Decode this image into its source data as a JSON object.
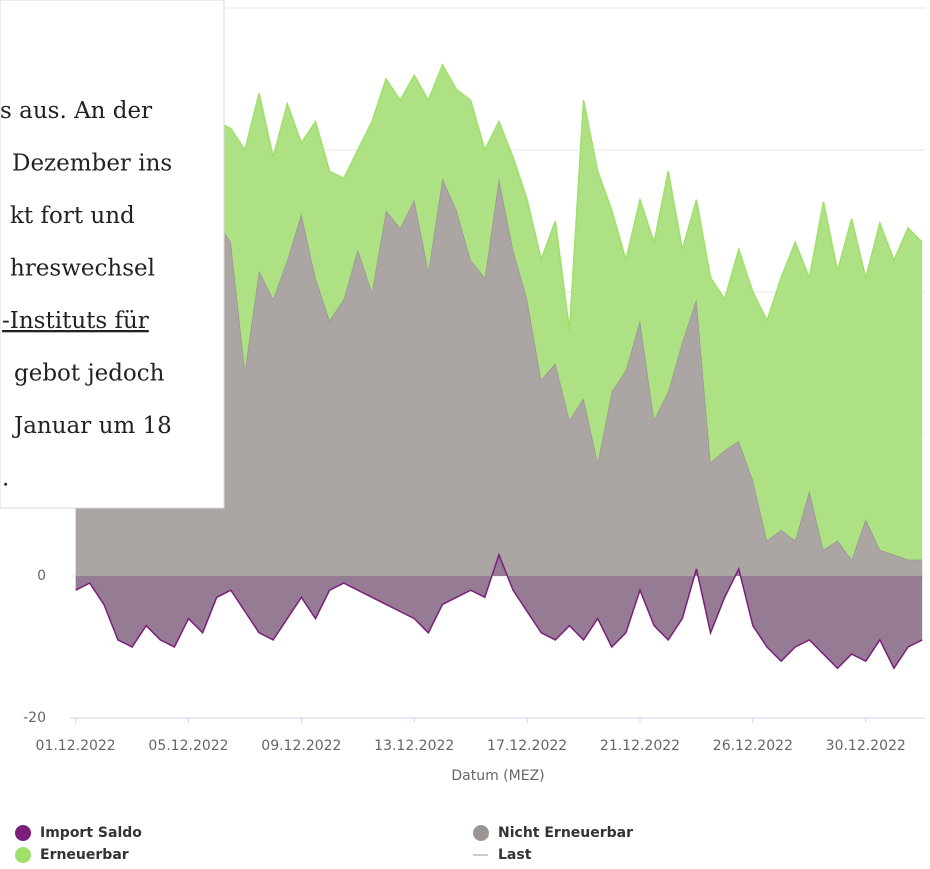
{
  "chart_data": {
    "type": "stacked-area",
    "x_label": "Datum (MEZ)",
    "x": [
      0,
      0.5,
      1,
      1.5,
      2,
      2.5,
      3,
      3.5,
      4,
      4.5,
      5,
      5.5,
      6,
      6.5,
      7,
      7.5,
      8,
      8.5,
      9,
      9.5,
      10,
      10.5,
      11,
      11.5,
      12,
      12.5,
      13,
      13.5,
      14,
      14.5,
      15,
      15.5,
      16,
      16.5,
      17,
      17.5,
      18,
      18.5,
      19,
      19.5,
      20,
      20.5,
      21,
      21.5,
      22,
      22.5,
      23,
      23.5,
      24,
      24.5,
      25,
      25.5,
      26,
      26.5,
      27,
      27.5,
      28,
      28.5,
      29,
      29.5,
      30
    ],
    "xlim": [
      -0.2,
      30.1
    ],
    "xticks": [
      {
        "value": 0,
        "label": "01.12.2022"
      },
      {
        "value": 4,
        "label": "05.12.2022"
      },
      {
        "value": 8,
        "label": "09.12.2022"
      },
      {
        "value": 12,
        "label": "13.12.2022"
      },
      {
        "value": 16,
        "label": "17.12.2022"
      },
      {
        "value": 20,
        "label": "21.12.2022"
      },
      {
        "value": 24,
        "label": "26.12.2022"
      },
      {
        "value": 28,
        "label": "30.12.2022"
      }
    ],
    "ylim": [
      -20,
      80
    ],
    "yticks": [
      -20,
      0,
      20,
      40,
      60,
      80
    ],
    "grid": true,
    "series": [
      {
        "name": "Import Saldo",
        "color": "#7b1f7b",
        "fill": "#957b93",
        "values": [
          -2,
          -1,
          -4,
          -9,
          -10,
          -7,
          -9,
          -10,
          -6,
          -8,
          -3,
          -2,
          -5,
          -8,
          -9,
          -6,
          -3,
          -6,
          -2,
          -1,
          -2,
          -3,
          -4,
          -5,
          -6,
          -8,
          -4,
          -3,
          -2,
          -3,
          3,
          -2,
          -5,
          -8,
          -9,
          -7,
          -9,
          -6,
          -10,
          -8,
          -2,
          -7,
          -9,
          -6,
          1,
          -8,
          -3,
          1,
          -7,
          -10,
          -12,
          -10,
          -9,
          -11,
          -13,
          -11,
          -12,
          -9,
          -13,
          -10,
          -9
        ]
      },
      {
        "name": "Nicht Erneuerbar",
        "color": "#9a9593",
        "fill": "#aba6a4",
        "values": [
          42,
          38,
          45,
          40,
          47,
          36,
          44,
          41,
          48,
          39,
          50,
          47,
          29,
          43,
          39,
          44.5,
          51,
          42,
          36,
          39,
          46,
          40,
          51.5,
          49,
          53,
          43,
          56,
          51.5,
          44.5,
          42,
          56,
          46,
          39,
          27.6,
          30,
          22,
          25,
          16,
          26,
          29,
          36,
          22,
          26,
          33,
          39,
          16,
          17.7,
          19,
          13.5,
          5,
          6.5,
          5,
          12,
          3.7,
          5,
          2.3,
          8,
          3.7,
          3,
          2.3,
          2.3
        ]
      },
      {
        "name": "Erneuerbar",
        "color": "#9ee06a",
        "fill": "#aee084",
        "values": [
          15,
          20,
          14,
          22,
          16,
          18,
          12,
          20,
          15,
          19,
          14,
          16,
          31,
          25,
          20,
          22,
          10,
          22,
          21,
          17,
          14,
          24,
          18.5,
          18,
          17.5,
          24,
          16,
          17,
          22.5,
          18,
          8,
          13,
          14,
          17,
          20,
          12.6,
          42,
          41,
          25.5,
          15.5,
          17,
          25,
          31,
          13,
          14,
          26,
          21.3,
          27,
          26.5,
          31,
          35.5,
          42,
          30,
          49,
          38,
          48,
          34,
          46,
          41.5,
          46.7,
          44.7
        ]
      },
      {
        "name": "Last",
        "color": "#cccccc"
      }
    ]
  },
  "article": {
    "lines": [
      "s aus. An der",
      " Dezember ins",
      "kt fort und",
      "hreswechsel",
      "-Instituts für",
      "gebot jedoch",
      "Januar um 18",
      "."
    ]
  }
}
